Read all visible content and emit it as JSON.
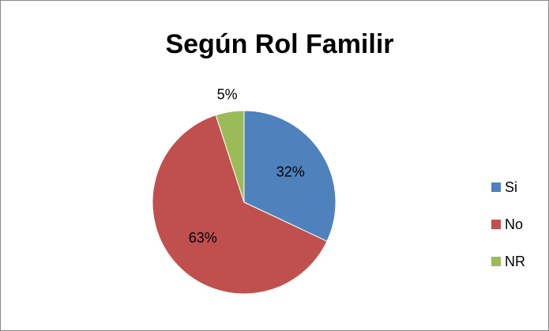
{
  "chart_data": {
    "type": "pie",
    "title": "Según Rol Familir",
    "categories": [
      "Si",
      "No",
      "NR"
    ],
    "values": [
      32,
      63,
      5
    ],
    "value_labels": [
      "32%",
      "63%",
      "5%"
    ],
    "colors": [
      "#4f81bd",
      "#c0504d",
      "#9bbb59"
    ],
    "legend": "right"
  }
}
